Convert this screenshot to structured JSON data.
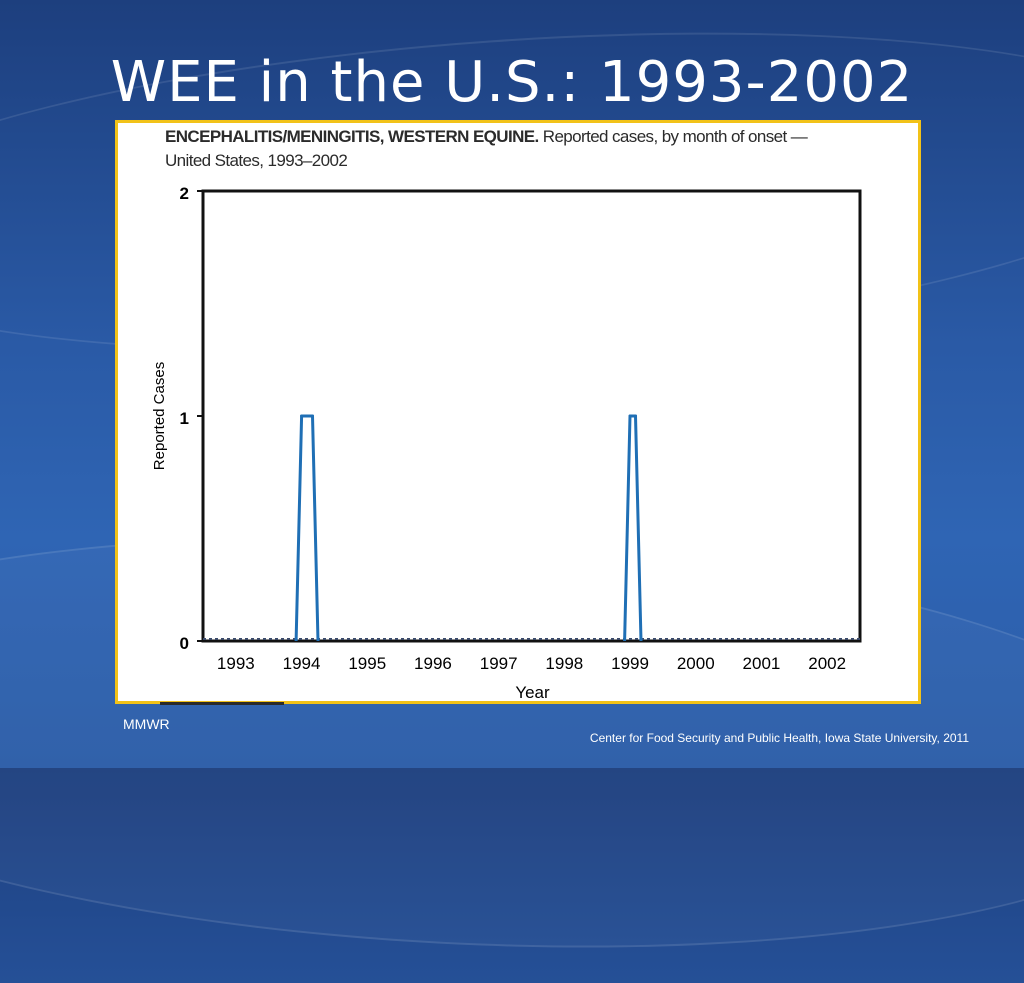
{
  "slide": {
    "title": "WEE in the U.S.: 1993-2002",
    "source": "MMWR",
    "credit": "Center for Food Security and Public Health, Iowa State University, 2011"
  },
  "chart_data": {
    "type": "line",
    "title_bold": "ENCEPHALITIS/MENINGITIS, WESTERN EQUINE.",
    "title_rest": " Reported cases, by month of onset —",
    "subtitle": "United States, 1993–2002",
    "xlabel": "Year",
    "ylabel": "Reported Cases",
    "y_ticks": [
      "0",
      "1",
      "2"
    ],
    "ylim": [
      0,
      2
    ],
    "x_tick_labels": [
      "1993",
      "1994",
      "1995",
      "1996",
      "1997",
      "1998",
      "1999",
      "2000",
      "2001",
      "2002"
    ],
    "x": [
      "1994-07",
      "1994-08",
      "1994-09",
      "1999-07",
      "1999-08"
    ],
    "values": [
      1,
      1,
      1,
      1,
      1
    ],
    "baseline": 0,
    "line_color": "#1f6fb5",
    "frame_color": "#f2c218"
  }
}
